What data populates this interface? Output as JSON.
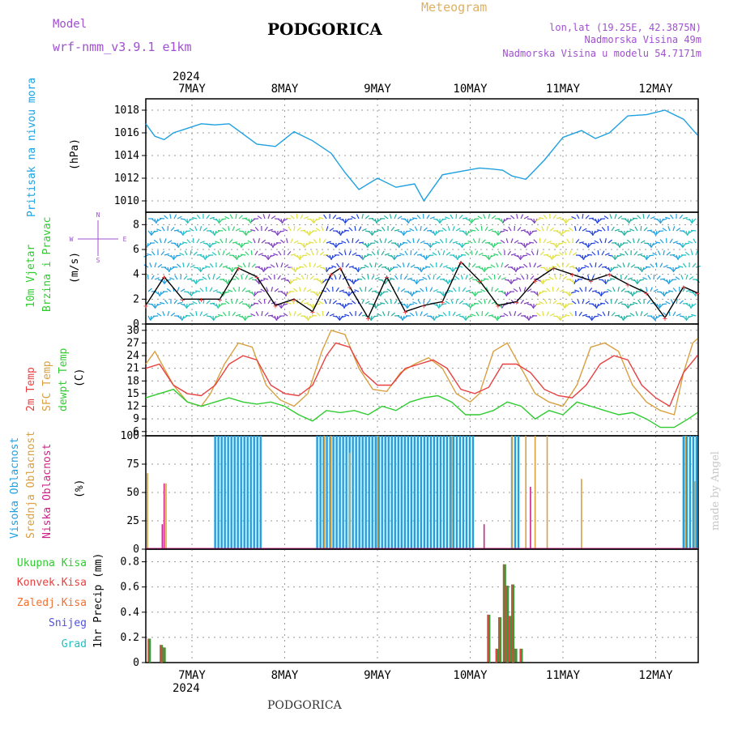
{
  "header": {
    "model_label": "Model",
    "model_name": "wrf-nmm_v3.9.1  e1km",
    "title": "PODGORICA",
    "meteogram_label": "Meteogram",
    "coords": "lon,lat (19.25E, 42.3875N)",
    "elevation": "Nadmorska Visina 49m",
    "model_elevation": "Nadmorska Visina u modelu 54.7171m",
    "watermark": "made by Angel",
    "bottom_title": "PODGORICA",
    "year_top": "2024",
    "year_bottom": "2024"
  },
  "colors": {
    "pressure": "#1ea0e0",
    "temp2m": "#e84040",
    "sfc": "#d8a040",
    "dewpt": "#2ecc2e",
    "high_cloud": "#1ea0e0",
    "mid_cloud": "#d8a040",
    "low_cloud": "#d0208a",
    "total_precip": "#3a9a3a",
    "conv_precip": "#e84040",
    "freezing": "#f07030",
    "snow": "#5050e0",
    "hail": "#20c0c0",
    "wind_label": "#2ecc2e",
    "compass": "#a050d0"
  },
  "chart_data": [
    {
      "type": "line",
      "panel": "pressure",
      "ylabel_left": "Pritisak na nivou mora",
      "unit": "(hPa)",
      "ylim": [
        1009,
        1019
      ],
      "yticks": [
        1010,
        1012,
        1014,
        1016,
        1018
      ],
      "x_days": [
        "7MAY",
        "8MAY",
        "9MAY",
        "10MAY",
        "11MAY",
        "12MAY"
      ],
      "series": [
        {
          "color_key": "pressure",
          "x": [
            0.0,
            0.1,
            0.2,
            0.3,
            0.45,
            0.6,
            0.75,
            0.9,
            1.0,
            1.2,
            1.4,
            1.6,
            1.8,
            2.0,
            2.15,
            2.3,
            2.5,
            2.7,
            2.9,
            3.0,
            3.2,
            3.4,
            3.6,
            3.75,
            3.85,
            3.95,
            4.1,
            4.3,
            4.5,
            4.7,
            4.85,
            5.0,
            5.2,
            5.4,
            5.6,
            5.8,
            5.95
          ],
          "y": [
            1016.8,
            1015.7,
            1015.4,
            1016.0,
            1016.4,
            1016.8,
            1016.7,
            1016.8,
            1016.2,
            1015.0,
            1014.8,
            1016.1,
            1015.3,
            1014.2,
            1012.5,
            1011.0,
            1012.0,
            1011.2,
            1011.5,
            1010.0,
            1012.3,
            1012.6,
            1012.9,
            1012.8,
            1012.7,
            1012.2,
            1011.9,
            1013.6,
            1015.6,
            1016.2,
            1015.5,
            1016.0,
            1017.5,
            1017.6,
            1018.0,
            1017.2,
            1015.8
          ]
        }
      ]
    },
    {
      "type": "line",
      "panel": "wind",
      "ylabel_left": [
        "10m Vjetar",
        "Brzina i Pravac"
      ],
      "unit": "(m/s)",
      "compass": {
        "n": "N",
        "s": "S",
        "e": "E",
        "w": "W"
      },
      "ylim": [
        0,
        9
      ],
      "yticks": [
        0,
        2,
        4,
        6,
        8
      ],
      "series": [
        {
          "name": "speed",
          "x": [
            0.0,
            0.2,
            0.4,
            0.6,
            0.8,
            1.0,
            1.2,
            1.4,
            1.6,
            1.8,
            2.0,
            2.1,
            2.2,
            2.4,
            2.6,
            2.8,
            3.0,
            3.2,
            3.4,
            3.6,
            3.8,
            4.0,
            4.2,
            4.4,
            4.6,
            4.8,
            5.0,
            5.2,
            5.4,
            5.6,
            5.8,
            5.95
          ],
          "y": [
            1.5,
            3.8,
            2.0,
            2.0,
            2.0,
            4.5,
            3.8,
            1.5,
            2.0,
            1.0,
            4.0,
            4.5,
            3.0,
            0.5,
            3.8,
            1.0,
            1.5,
            1.8,
            5.0,
            3.5,
            1.5,
            1.8,
            3.5,
            4.5,
            4.0,
            3.5,
            4.0,
            3.2,
            2.5,
            0.5,
            3.0,
            2.5
          ]
        }
      ]
    },
    {
      "type": "line",
      "panel": "temperature",
      "ylabel_left": [
        "2m Temp",
        "SFC Temp",
        "dewpt Temp"
      ],
      "unit": "(C)",
      "ylim": [
        5,
        31.5
      ],
      "yticks": [
        6,
        9,
        12,
        15,
        18,
        21,
        24,
        27,
        30
      ],
      "series": [
        {
          "color_key": "sfc",
          "x": [
            0.0,
            0.1,
            0.3,
            0.45,
            0.6,
            0.7,
            0.85,
            1.0,
            1.15,
            1.3,
            1.45,
            1.6,
            1.75,
            1.9,
            2.0,
            2.15,
            2.3,
            2.45,
            2.6,
            2.75,
            2.9,
            3.05,
            3.2,
            3.35,
            3.5,
            3.6,
            3.75,
            3.9,
            4.05,
            4.2,
            4.35,
            4.5,
            4.65,
            4.8,
            4.95,
            5.1,
            5.25,
            5.4,
            5.55,
            5.7,
            5.8,
            5.9,
            5.95
          ],
          "y": [
            22,
            25,
            17,
            13,
            12,
            15,
            22,
            27,
            26,
            17,
            13.5,
            12,
            15,
            25,
            30,
            29,
            21,
            16,
            15.5,
            20,
            22,
            23.5,
            21,
            15,
            13,
            15,
            25,
            27,
            21,
            15,
            13,
            12,
            17,
            26,
            27,
            25,
            17,
            13,
            11,
            10,
            20,
            27,
            28
          ]
        },
        {
          "color_key": "temp2m",
          "x": [
            0.0,
            0.15,
            0.3,
            0.45,
            0.6,
            0.75,
            0.9,
            1.05,
            1.2,
            1.35,
            1.5,
            1.65,
            1.8,
            1.95,
            2.05,
            2.2,
            2.35,
            2.5,
            2.65,
            2.8,
            2.95,
            3.1,
            3.25,
            3.4,
            3.55,
            3.7,
            3.85,
            4.0,
            4.15,
            4.3,
            4.45,
            4.6,
            4.75,
            4.9,
            5.05,
            5.2,
            5.35,
            5.5,
            5.65,
            5.8,
            5.95
          ],
          "y": [
            21,
            22,
            17,
            15,
            14.5,
            17,
            22,
            24,
            23,
            17,
            15,
            14.5,
            17,
            24,
            27,
            26,
            20,
            17,
            17,
            21,
            22,
            23,
            21,
            16,
            15,
            16.5,
            22,
            22,
            20,
            16,
            14.5,
            14,
            17,
            22,
            24,
            23,
            17,
            14,
            12,
            20,
            24
          ]
        },
        {
          "color_key": "dewpt",
          "x": [
            0.0,
            0.15,
            0.3,
            0.45,
            0.6,
            0.75,
            0.9,
            1.05,
            1.2,
            1.35,
            1.5,
            1.65,
            1.8,
            1.95,
            2.1,
            2.25,
            2.4,
            2.55,
            2.7,
            2.85,
            3.0,
            3.15,
            3.3,
            3.45,
            3.6,
            3.75,
            3.9,
            4.05,
            4.2,
            4.35,
            4.5,
            4.65,
            4.8,
            4.95,
            5.1,
            5.25,
            5.4,
            5.55,
            5.7,
            5.85,
            5.95
          ],
          "y": [
            14,
            15,
            16,
            13,
            12,
            13,
            14,
            13,
            12.5,
            13,
            12,
            10,
            8.5,
            11,
            10.5,
            11,
            10,
            12,
            11,
            13,
            14,
            14.5,
            13,
            10,
            10,
            11,
            13,
            12,
            9,
            11,
            10,
            13,
            12,
            11,
            10,
            10.5,
            9,
            7,
            7,
            9,
            10.5
          ]
        }
      ]
    },
    {
      "type": "bar",
      "panel": "cloud",
      "ylabel_left": [
        "Visoka Oblacnost",
        "Srednja Oblacnost",
        "Niska Oblacnost"
      ],
      "unit": "(%)",
      "ylim": [
        0,
        100
      ],
      "yticks": [
        0,
        25,
        50,
        75,
        100
      ],
      "series": [
        {
          "name": "high",
          "color_key": "high_cloud",
          "segments": [
            {
              "x0": 0.75,
              "x1": 1.25,
              "value": 100
            },
            {
              "x0": 1.85,
              "x1": 3.55,
              "value": 100
            },
            {
              "x0": 3.95,
              "x1": 4.05,
              "value": 100
            },
            {
              "x0": 5.8,
              "x1": 5.95,
              "value": 100
            }
          ]
        },
        {
          "name": "mid",
          "color_key": "mid_cloud",
          "spikes": [
            {
              "x": 0.02,
              "value": 67
            },
            {
              "x": 0.22,
              "value": 58
            },
            {
              "x": 1.93,
              "value": 100
            },
            {
              "x": 2.0,
              "value": 100
            },
            {
              "x": 2.2,
              "value": 85
            },
            {
              "x": 2.5,
              "value": 100
            },
            {
              "x": 3.3,
              "value": 100
            },
            {
              "x": 3.95,
              "value": 100
            },
            {
              "x": 4.1,
              "value": 100
            },
            {
              "x": 4.2,
              "value": 100
            },
            {
              "x": 4.33,
              "value": 100
            },
            {
              "x": 4.7,
              "value": 62
            },
            {
              "x": 5.82,
              "value": 100
            },
            {
              "x": 5.92,
              "value": 60
            }
          ]
        },
        {
          "name": "low",
          "color_key": "low_cloud",
          "spikes": [
            {
              "x": 0.18,
              "value": 22
            },
            {
              "x": 0.2,
              "value": 58
            },
            {
              "x": 3.65,
              "value": 22
            },
            {
              "x": 4.15,
              "value": 55
            }
          ]
        }
      ]
    },
    {
      "type": "bar",
      "panel": "precip",
      "ylabel_left": [
        "Ukupna Kisa",
        "Konvek.Kisa",
        "Zaledj.Kisa",
        "Snijeg",
        "Grad"
      ],
      "unit": "1hr Precip (mm)",
      "ylim": [
        0,
        0.9
      ],
      "yticks": [
        0,
        0.2,
        0.4,
        0.6,
        0.8
      ],
      "series": [
        {
          "name": "total",
          "color_key": "total_precip",
          "x": [
            0.04,
            0.17,
            0.2,
            3.7,
            3.79,
            3.82,
            3.87,
            3.9,
            3.93,
            3.96,
            3.99,
            4.05
          ],
          "values": [
            0.19,
            0.14,
            0.12,
            0.38,
            0.11,
            0.36,
            0.78,
            0.61,
            0.37,
            0.62,
            0.11,
            0.11
          ]
        }
      ]
    }
  ]
}
